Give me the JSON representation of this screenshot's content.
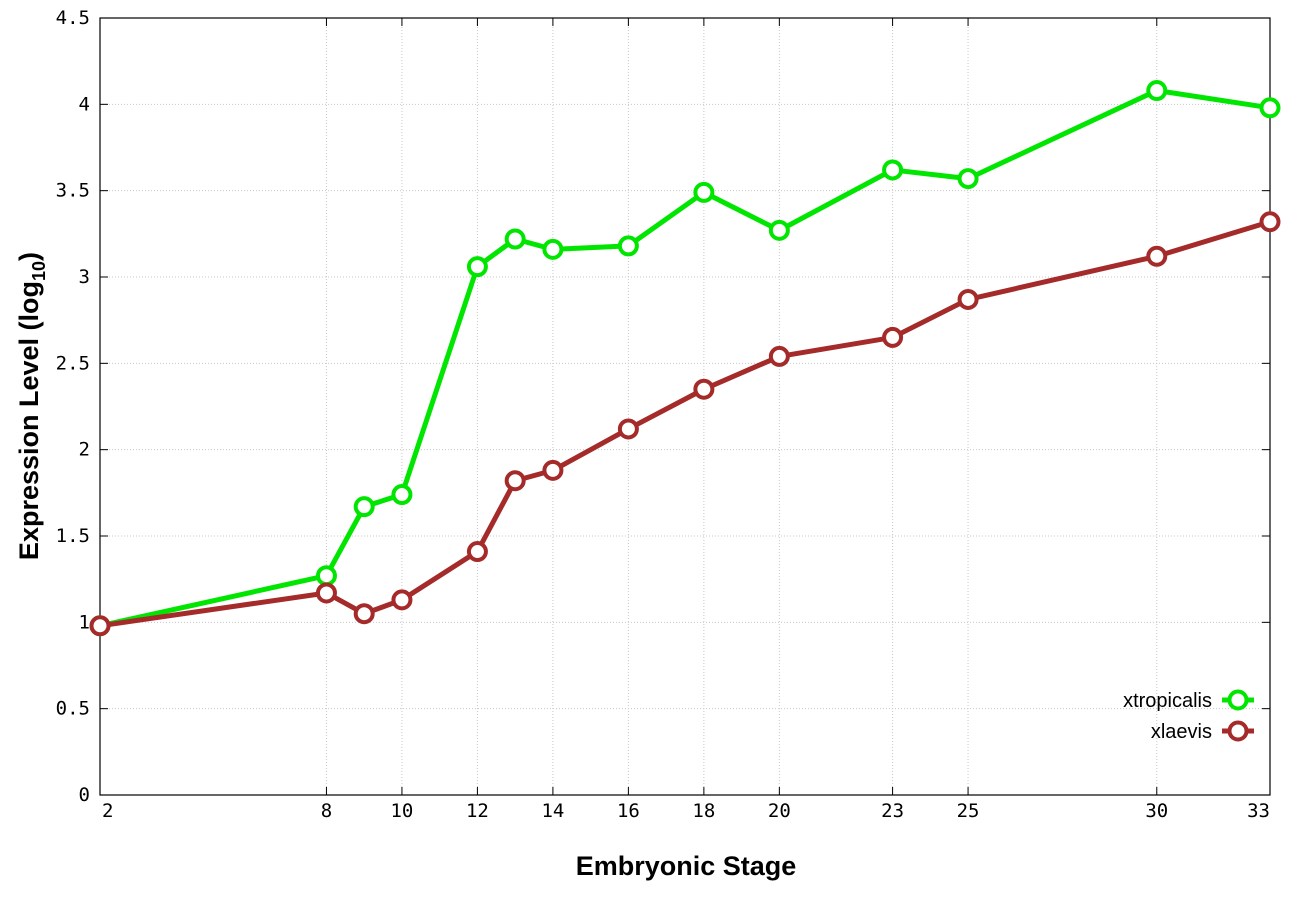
{
  "chart_data": {
    "type": "line",
    "title": "",
    "xlabel": "Embryonic Stage",
    "ylabel_main": "Expression Level (log",
    "ylabel_sub": "10",
    "ylabel_close": ")",
    "x_ticks": [
      2,
      8,
      10,
      12,
      14,
      16,
      18,
      20,
      23,
      25,
      30,
      33
    ],
    "x_tick_labels": [
      "2",
      "8",
      "10",
      "12",
      "14",
      "16",
      "18",
      "20",
      "23",
      "25",
      "30",
      "33"
    ],
    "y_ticks": [
      0,
      0.5,
      1,
      1.5,
      2,
      2.5,
      3,
      3.5,
      4,
      4.5
    ],
    "y_tick_labels": [
      "0",
      "0.5",
      "1",
      "1.5",
      "2",
      "2.5",
      "3",
      "3.5",
      "4",
      "4.5"
    ],
    "xlim": [
      2,
      33
    ],
    "ylim": [
      0,
      4.5
    ],
    "grid": true,
    "legend_position": "bottom-right",
    "x": [
      2,
      8,
      9,
      10,
      12,
      13,
      14,
      16,
      18,
      20,
      23,
      25,
      30,
      33
    ],
    "series": [
      {
        "name": "xtropicalis",
        "color": "#00e600",
        "values": [
          0.98,
          1.27,
          1.67,
          1.74,
          3.06,
          3.22,
          3.16,
          3.18,
          3.49,
          3.27,
          3.62,
          3.57,
          4.08,
          3.98
        ]
      },
      {
        "name": "xlaevis",
        "color": "#a52a2a",
        "values": [
          0.98,
          1.17,
          1.05,
          1.13,
          1.41,
          1.82,
          1.88,
          2.12,
          2.35,
          2.54,
          2.65,
          2.87,
          3.12,
          3.32
        ]
      }
    ]
  }
}
